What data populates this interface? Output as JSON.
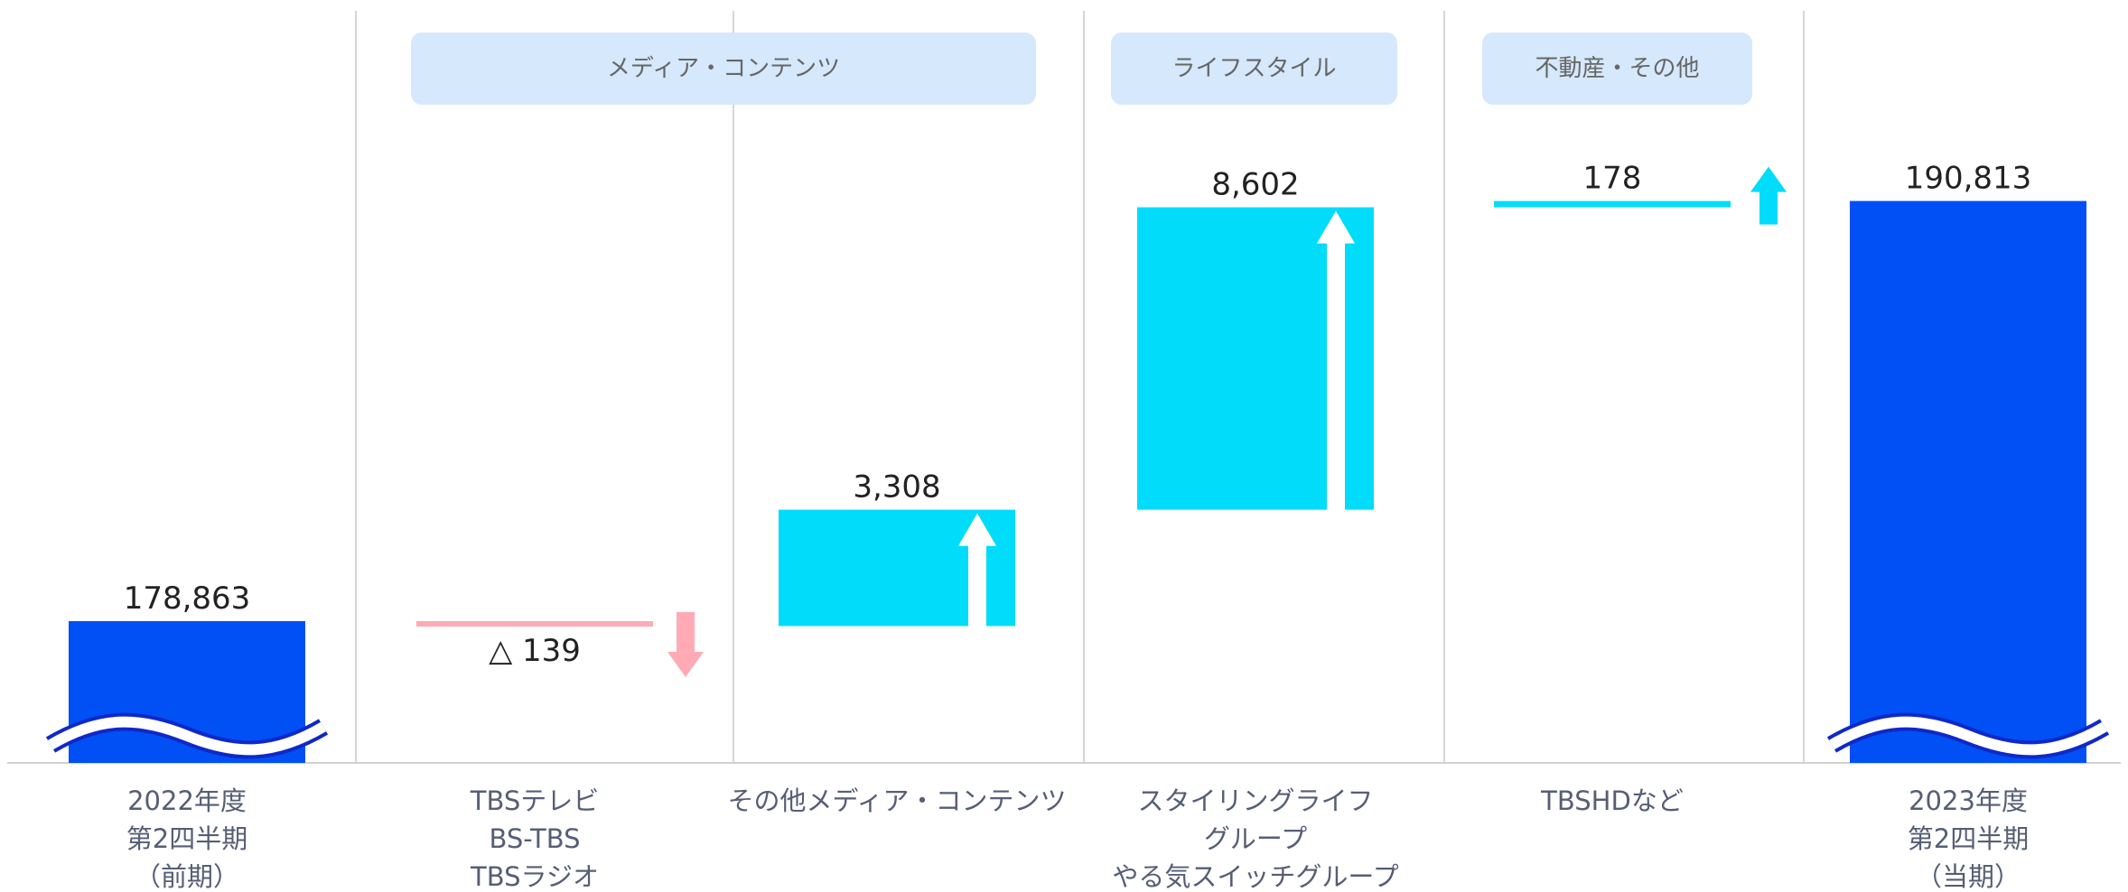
{
  "chart_data": {
    "type": "waterfall",
    "unit": "",
    "groups": [
      {
        "label": "メディア・コンテンツ",
        "columns": [
          1,
          2
        ]
      },
      {
        "label": "ライフスタイル",
        "columns": [
          3
        ]
      },
      {
        "label": "不動産・その他",
        "columns": [
          4
        ]
      }
    ],
    "items": [
      {
        "kind": "total",
        "category_lines": [
          "2022年度",
          "第2四半期",
          "（前期）"
        ],
        "value": 178863,
        "value_label": "178,863"
      },
      {
        "kind": "delta",
        "category_lines": [
          "TBSテレビ",
          "BS-TBS",
          "TBSラジオ"
        ],
        "value": -139,
        "value_label": "△ 139"
      },
      {
        "kind": "delta",
        "category_lines": [
          "その他メディア・コンテンツ"
        ],
        "value": 3308,
        "value_label": "3,308"
      },
      {
        "kind": "delta",
        "category_lines": [
          "スタイリングライフ",
          "グループ",
          "やる気スイッチグループ"
        ],
        "value": 8602,
        "value_label": "8,602"
      },
      {
        "kind": "delta",
        "category_lines": [
          "TBSHDなど"
        ],
        "value": 178,
        "value_label": "178"
      },
      {
        "kind": "total",
        "category_lines": [
          "2023年度",
          "第2四半期",
          "（当期）"
        ],
        "value": 190813,
        "value_label": "190,813"
      }
    ],
    "axis_break": true,
    "grid": false,
    "legend": "none",
    "colors": {
      "total": "#0050f5",
      "increase": "#00dcfa",
      "decrease": "#ffaab4",
      "increase_arrow": "#00dcfa",
      "decrease_arrow": "#ffaab4",
      "group_label_bg": "#d6e8fb",
      "group_label_text": "#666666",
      "separator": "#c8c8c8",
      "baseline": "#d0d0d0",
      "category_text": "#555e74",
      "value_text": "#222222"
    }
  }
}
